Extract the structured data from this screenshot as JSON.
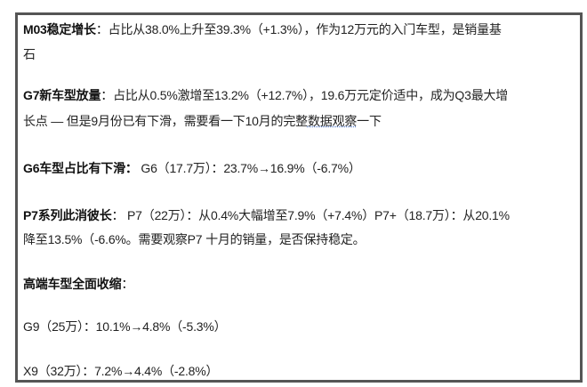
{
  "items": [
    {
      "heading": "M03稳定增长",
      "sep": "：",
      "text": "占比从38.0%上升至39.3%（+1.3%），作为12万元的入门车型，是销量基",
      "cont": "石"
    },
    {
      "heading": "G7新车型放量",
      "sep": "：",
      "text": "占比从0.5%激增至13.2%（+12.7%），19.6万元定价适中，成为Q3最大增",
      "cont_a": "长点 — 但是9月份已有下滑，需要看一下10月的完整",
      "cont_spell": "数据观察",
      "cont_b": "一下"
    },
    {
      "heading": "G6车型占比有下滑：",
      "text": "G6（17.7万）：23.7%→16.9%（-6.7%）"
    },
    {
      "heading": "P7系列此消彼长",
      "sep": "：",
      "text": "P7（22万）：从0.4%大幅增至7.9%（+7.4%）P7+（18.7万）：从20.1%",
      "cont": "降至13.5%（-6.6%。需要观察P7 十月的销量，是否保持稳定。"
    },
    {
      "heading": "高端车型全面收缩",
      "sep": "："
    }
  ],
  "lines": [
    "G9（25万）：10.1%→4.8%（-5.3%）",
    "X9（32万）：7.2%→4.4%（-2.8%）"
  ]
}
